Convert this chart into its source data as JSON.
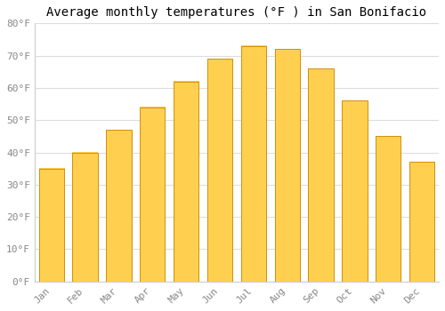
{
  "title": "Average monthly temperatures (°F ) in San Bonifacio",
  "months": [
    "Jan",
    "Feb",
    "Mar",
    "Apr",
    "May",
    "Jun",
    "Jul",
    "Aug",
    "Sep",
    "Oct",
    "Nov",
    "Dec"
  ],
  "values": [
    35,
    40,
    47,
    54,
    62,
    69,
    73,
    72,
    66,
    56,
    45,
    37
  ],
  "bar_color_top": "#FFD050",
  "bar_color_bottom": "#F5A800",
  "bar_edge_color": "#D4900A",
  "background_color": "#FFFFFF",
  "grid_color": "#DDDDDD",
  "ylim": [
    0,
    80
  ],
  "yticks": [
    0,
    10,
    20,
    30,
    40,
    50,
    60,
    70,
    80
  ],
  "title_fontsize": 10,
  "tick_fontsize": 8,
  "font_family": "monospace",
  "bar_width": 0.75
}
